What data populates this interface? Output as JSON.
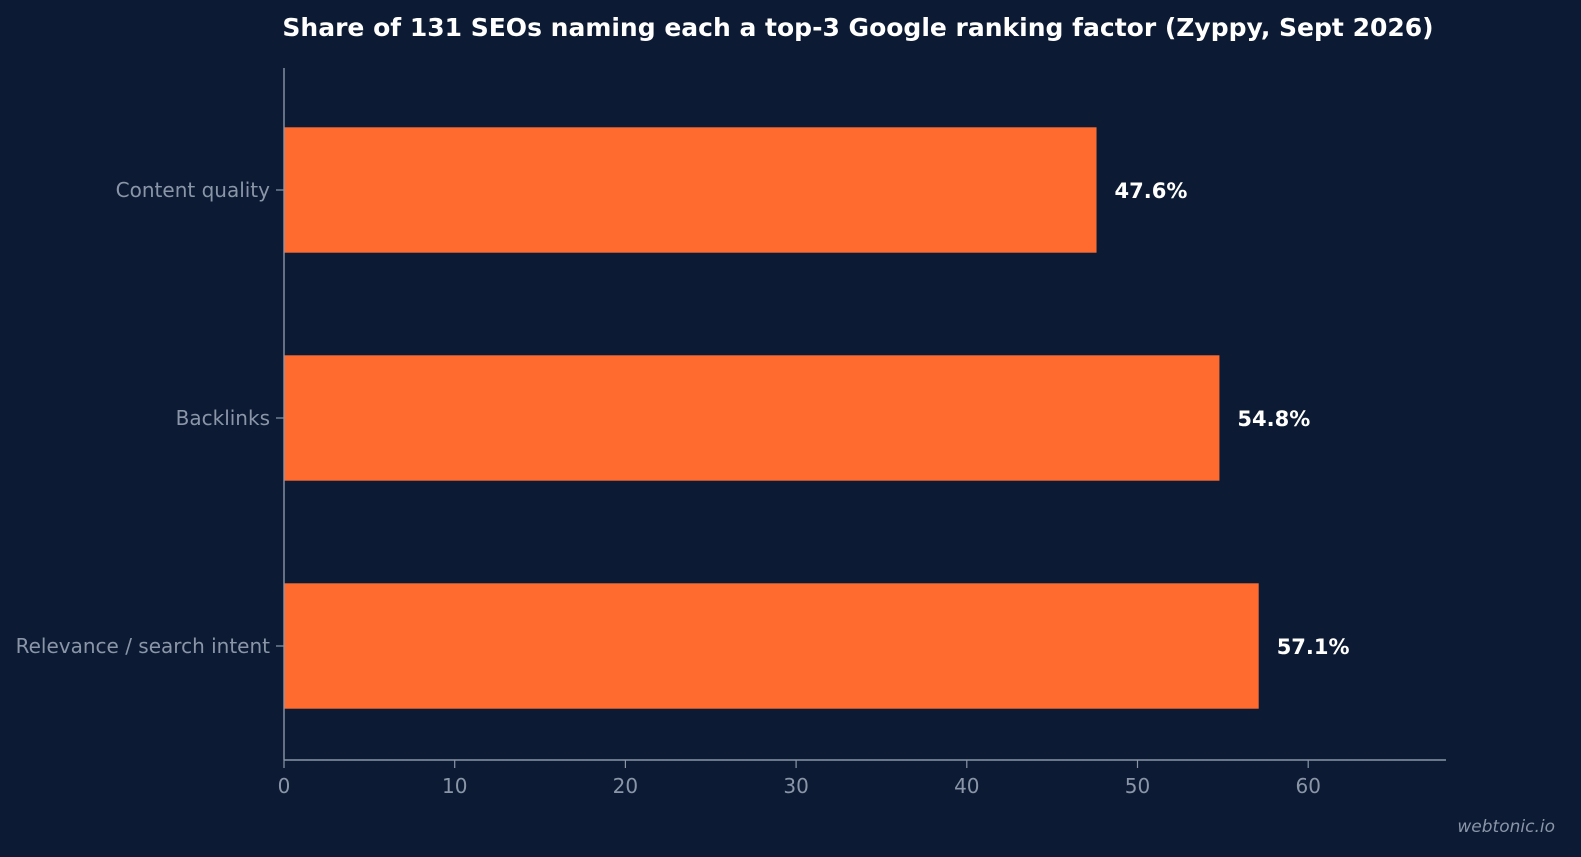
{
  "chart_data": {
    "type": "bar",
    "orientation": "horizontal",
    "title": "Share of 131 SEOs naming each a top-3 Google ranking factor (Zyppy, Sept 2026)",
    "xlabel": "",
    "ylabel": "",
    "categories": [
      "Content quality",
      "Backlinks",
      "Relevance / search intent"
    ],
    "values": [
      47.6,
      54.8,
      57.1
    ],
    "value_labels": [
      "47.6%",
      "54.8%",
      "57.1%"
    ],
    "xlim": [
      0,
      68
    ],
    "x_ticks": [
      0,
      10,
      20,
      30,
      40,
      50,
      60
    ],
    "grid": false,
    "legend": "none",
    "bar_color": "#ff6b2f",
    "background_color": "#0c1b33",
    "axis_color": "#8a95a8"
  },
  "watermark": "webtonic.io"
}
